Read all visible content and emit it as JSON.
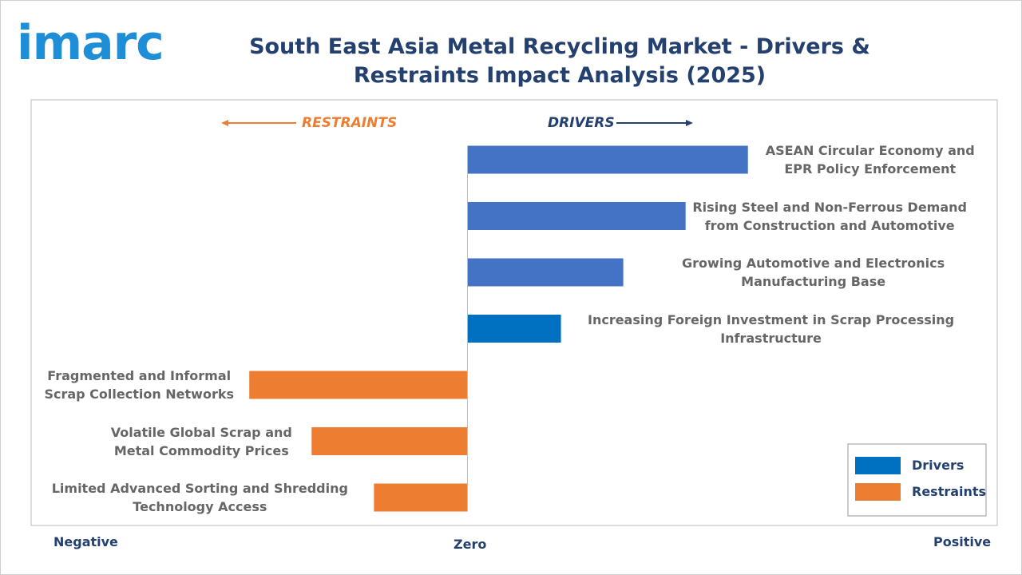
{
  "logo": "imarc",
  "chart_data": {
    "type": "diverging-bar",
    "title": "South East Asia Metal Recycling Market - Drivers & Restraints Impact Analysis (2025)",
    "annotations": {
      "restraints": "RESTRAINTS",
      "drivers": "DRIVERS"
    },
    "axis_labels": {
      "negative": "Negative",
      "zero": "Zero",
      "positive": "Positive"
    },
    "xlim": [
      -7,
      8.5
    ],
    "series": [
      {
        "name": "Drivers",
        "color": "#0070c0",
        "categories": [
          "ASEAN Circular Economy and EPR Policy Enforcement",
          "Rising Steel and Non-Ferrous Demand from Construction and Automotive",
          "Growing Automotive and Electronics Manufacturing Base",
          "Increasing Foreign Investment in Scrap Processing Infrastructure"
        ],
        "values": [
          4.5,
          3.5,
          2.5,
          1.5
        ],
        "colors": [
          "#4472c4",
          "#4472c4",
          "#4472c4",
          "#0070c0"
        ]
      },
      {
        "name": "Restraints",
        "color": "#ed7d31",
        "categories": [
          "Fragmented and Informal Scrap Collection Networks",
          "Volatile Global Scrap and Metal Commodity Prices",
          "Limited Advanced Sorting and Shredding Technology Access"
        ],
        "values": [
          -3.5,
          -2.5,
          -1.5
        ]
      }
    ]
  }
}
